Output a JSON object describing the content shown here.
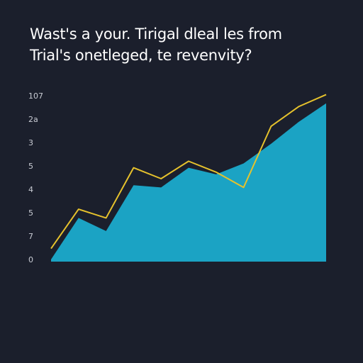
{
  "title_lines": [
    "Wast's a your. Tirigal dleal les from",
    "Trial's  onetleged, te revenvity?"
  ],
  "colors": {
    "background": "#1b1f2c",
    "area_fill": "#1ba3c4",
    "line_stroke": "#e6c22c",
    "title_text": "#ffffff",
    "tick_text": "#c9ccd4"
  },
  "chart_data": {
    "type": "area",
    "title": "Wast's a your. Tirigal dleal les from Trial's  onetleged, te revenvity?",
    "xlabel": "",
    "ylabel": "",
    "y_tick_labels": [
      "0",
      "7",
      "5",
      "4",
      "5",
      "3",
      "2a",
      "107"
    ],
    "ylim": [
      0,
      7.6
    ],
    "grid": false,
    "legend": "none",
    "x": [
      0,
      1,
      2,
      3,
      4,
      5,
      6,
      7,
      8,
      9,
      10
    ],
    "series": [
      {
        "kind": "area",
        "values": [
          0.1,
          2.0,
          1.4,
          3.5,
          3.4,
          4.3,
          4.0,
          4.5,
          5.4,
          6.4,
          7.25
        ]
      },
      {
        "kind": "line",
        "values": [
          0.6,
          2.4,
          2.0,
          4.3,
          3.8,
          4.6,
          4.1,
          3.4,
          6.2,
          7.1,
          7.65
        ]
      }
    ]
  }
}
